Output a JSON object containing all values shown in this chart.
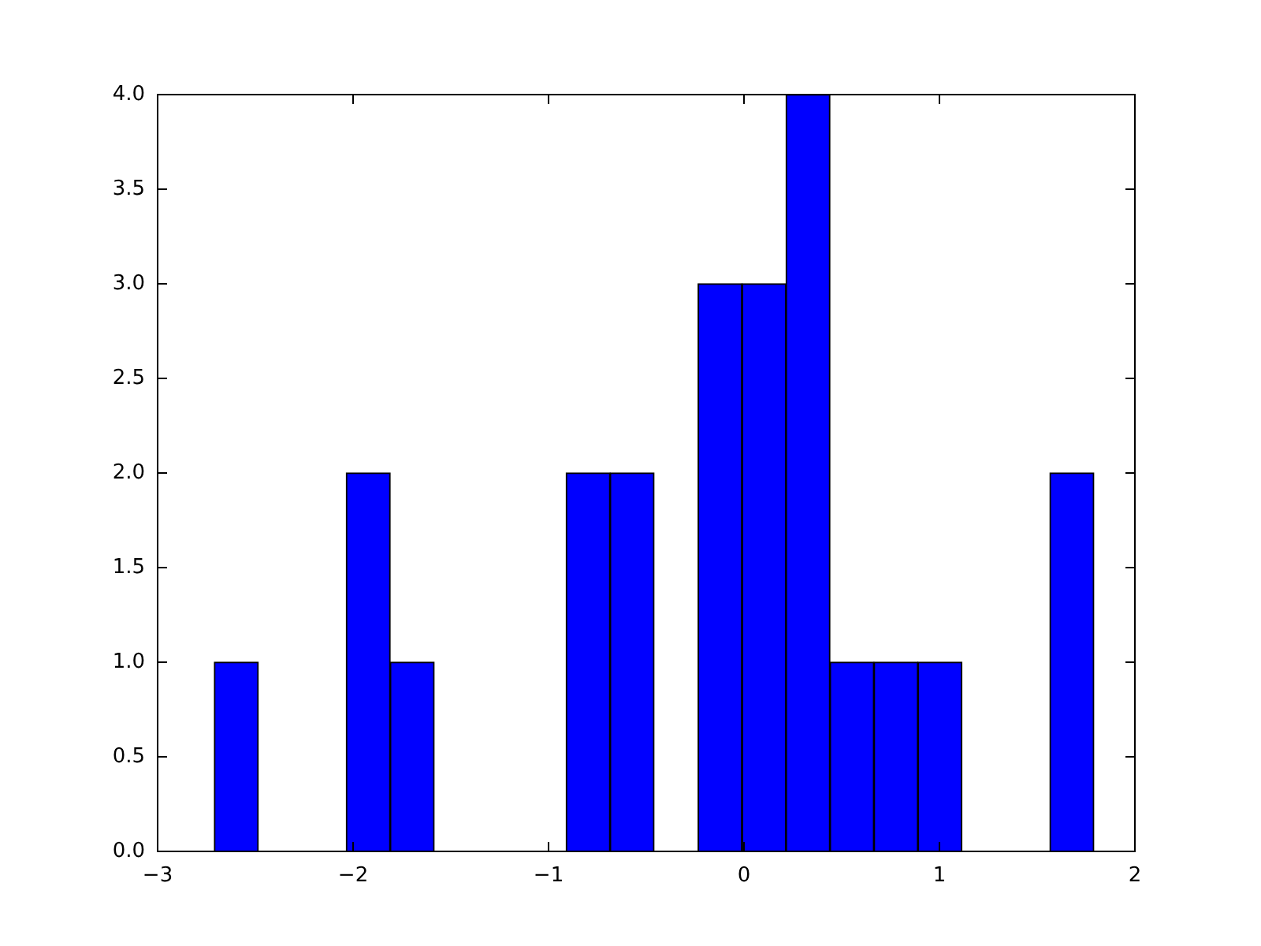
{
  "chart_data": {
    "type": "histogram",
    "bins": [
      -2.71,
      -2.485,
      -2.26,
      -2.035,
      -1.81,
      -1.585,
      -1.36,
      -1.135,
      -0.91,
      -0.685,
      -0.46,
      -0.235,
      -0.01,
      0.215,
      0.44,
      0.665,
      0.89,
      1.115,
      1.34,
      1.565,
      1.79
    ],
    "values": [
      1,
      0,
      0,
      2,
      1,
      0,
      0,
      0,
      2,
      2,
      0,
      3,
      3,
      4,
      1,
      1,
      1,
      0,
      0,
      2
    ],
    "color": "#0000ff",
    "xlim": [
      -3,
      2
    ],
    "xticks": [
      {
        "value": -3,
        "label": "−3"
      },
      {
        "value": -2,
        "label": "−2"
      },
      {
        "value": -1,
        "label": "−1"
      },
      0,
      1,
      2
    ],
    "ylim": [
      0,
      4
    ],
    "yticks": [
      {
        "value": 0,
        "label": "0.0"
      },
      {
        "value": 0.5,
        "label": "0.5"
      },
      {
        "value": 1,
        "label": "1.0"
      },
      {
        "value": 1.5,
        "label": "1.5"
      },
      {
        "value": 2,
        "label": "2.0"
      },
      {
        "value": 2.5,
        "label": "2.5"
      },
      {
        "value": 3,
        "label": "3.0"
      },
      {
        "value": 3.5,
        "label": "3.5"
      },
      {
        "value": 4,
        "label": "4.0"
      }
    ],
    "grid": false,
    "legend": false
  }
}
